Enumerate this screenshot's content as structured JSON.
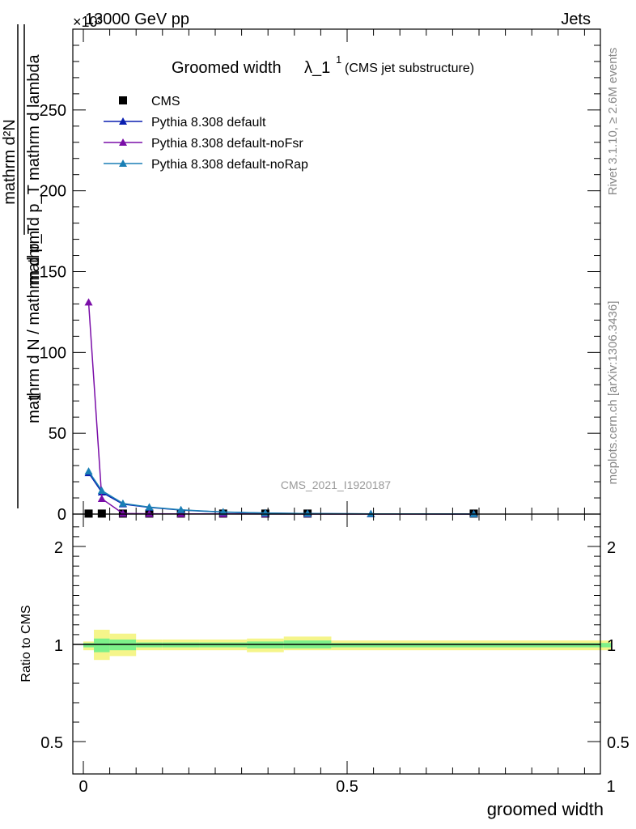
{
  "header": {
    "left": "13000 GeV pp",
    "right": "Jets",
    "exponent": "×10³"
  },
  "side_labels": {
    "rivet": "Rivet 3.1.10, ≥ 2.6M events",
    "mcplots": "mcplots.cern.ch [arXiv:1306.3436]"
  },
  "watermark": "CMS_2021_I1920187",
  "chart_data": [
    {
      "type": "line",
      "title_main": "Groomed width",
      "title_lambda": "λ_1",
      "title_sup": "1",
      "title_paren": "(CMS jet substructure)",
      "xlabel": "groomed width",
      "ylabel_numerator": "mathrm d²N",
      "ylabel_denominator": "mathrm d p_T mathrm d lambda",
      "ylabel_outer_num": "1",
      "ylabel_outer_den": "mathrm d N / mathrm d p_T",
      "xlim": [
        0,
        1
      ],
      "ylim": [
        0,
        300
      ],
      "y_multiplier": 1000,
      "yticks": [
        0,
        50,
        100,
        150,
        200,
        250
      ],
      "xticks": [
        0,
        0.5,
        1
      ],
      "xtick_labels": [
        "0",
        "0.5",
        "1"
      ],
      "legend_position": "top-left",
      "series": [
        {
          "name": "CMS",
          "color": "#000000",
          "marker": "square",
          "x": [
            0.01,
            0.035,
            0.075,
            0.125,
            0.185,
            0.265,
            0.345,
            0.425,
            0.74
          ],
          "y": [
            0.3,
            0.3,
            0.3,
            0.3,
            0.3,
            0.3,
            0.3,
            0.3,
            0.3
          ]
        },
        {
          "name": "Pythia 8.308 default",
          "color": "#0a1fb0",
          "marker": "triangle",
          "x": [
            0.01,
            0.035,
            0.075,
            0.125,
            0.185,
            0.265,
            0.345,
            0.425,
            0.545,
            0.74
          ],
          "y": [
            25.5,
            13.5,
            6.2,
            4.1,
            2.5,
            1.2,
            0.6,
            0.3,
            0.15,
            0.05
          ]
        },
        {
          "name": "Pythia 8.308 default-noFsr",
          "color": "#7a0ea8",
          "marker": "triangle",
          "x": [
            0.01,
            0.035,
            0.075,
            0.125,
            0.185,
            0.265,
            0.345,
            0.425,
            0.545,
            0.74
          ],
          "y": [
            131,
            9.5,
            0.4,
            0.2,
            0.15,
            0.1,
            0.05,
            0.03,
            0.02,
            0.01
          ]
        },
        {
          "name": "Pythia 8.308 default-noRap",
          "color": "#1a7fb5",
          "marker": "triangle",
          "x": [
            0.01,
            0.035,
            0.075,
            0.125,
            0.185,
            0.265,
            0.345,
            0.425,
            0.545,
            0.74
          ],
          "y": [
            26.5,
            14.5,
            6.6,
            4.3,
            2.6,
            1.3,
            0.65,
            0.32,
            0.15,
            0.05
          ]
        }
      ]
    },
    {
      "type": "area",
      "ylabel": "Ratio to CMS",
      "xlim": [
        0,
        1
      ],
      "ylim": [
        0.4,
        2.3
      ],
      "yticks": [
        0.5,
        1,
        2
      ],
      "ytick_labels": [
        "0.5",
        "1",
        "2"
      ],
      "reference_line": 1,
      "bins": [
        0,
        0.02,
        0.05,
        0.1,
        0.15,
        0.22,
        0.31,
        0.38,
        0.47,
        1.0
      ],
      "band_outer": [
        [
          0.97,
          1.03
        ],
        [
          0.92,
          1.15
        ],
        [
          0.94,
          1.11
        ],
        [
          0.97,
          1.05
        ],
        [
          0.97,
          1.05
        ],
        [
          0.97,
          1.05
        ],
        [
          0.96,
          1.06
        ],
        [
          0.97,
          1.08
        ],
        [
          0.97,
          1.04
        ]
      ],
      "band_inner": [
        [
          0.985,
          1.015
        ],
        [
          0.96,
          1.06
        ],
        [
          0.97,
          1.05
        ],
        [
          0.985,
          1.02
        ],
        [
          0.985,
          1.02
        ],
        [
          0.985,
          1.02
        ],
        [
          0.98,
          1.03
        ],
        [
          0.98,
          1.04
        ],
        [
          0.985,
          1.015
        ]
      ],
      "band_outer_color": "#f5f58a",
      "band_inner_color": "#7df08a"
    }
  ]
}
